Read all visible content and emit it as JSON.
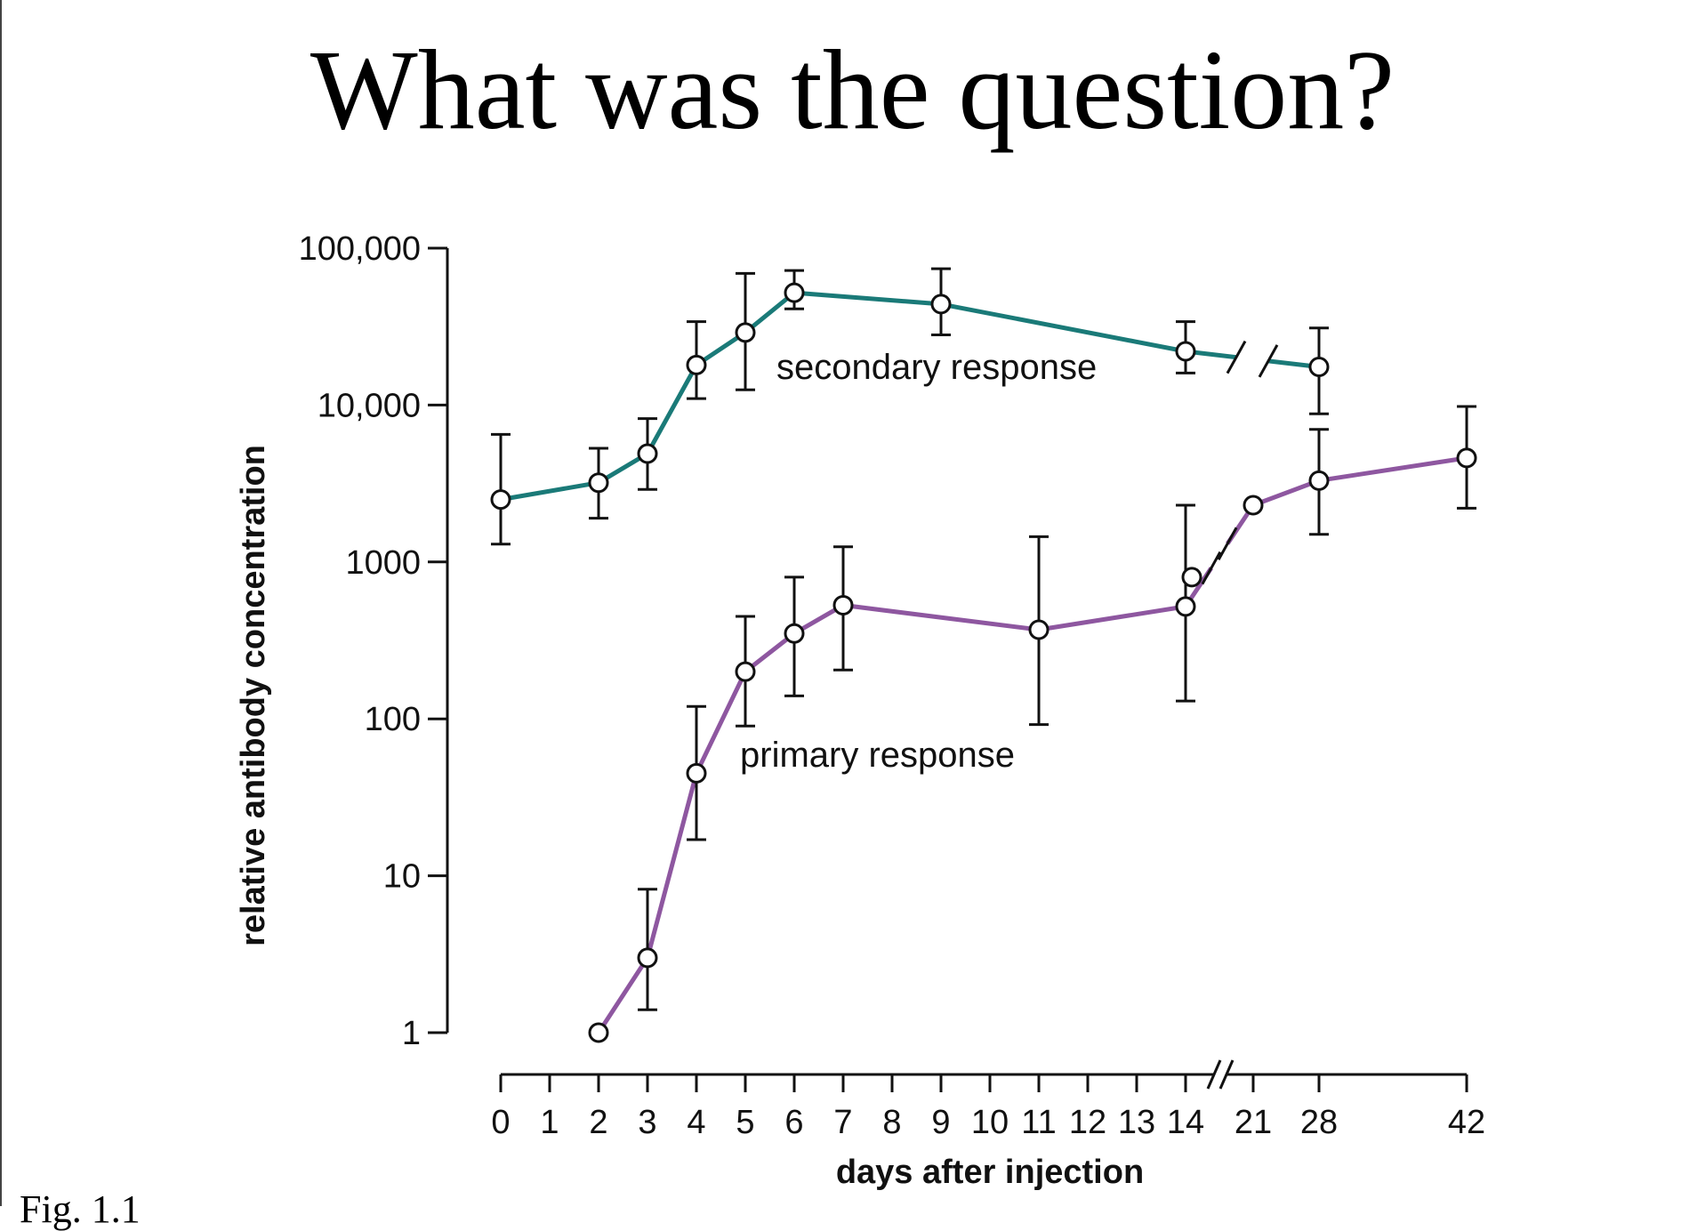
{
  "slide": {
    "title": "What was the question?",
    "footer_caption": "Fig. 1.1"
  },
  "chart_data": {
    "type": "line",
    "title": "",
    "xlabel": "days after injection",
    "ylabel": "relative antibody concentration",
    "y_scale": "log",
    "ylim": [
      1,
      100000
    ],
    "y_ticks": [
      {
        "value": 1,
        "label": "1"
      },
      {
        "value": 10,
        "label": "10"
      },
      {
        "value": 100,
        "label": "100"
      },
      {
        "value": 1000,
        "label": "1000"
      },
      {
        "value": 10000,
        "label": "10,000"
      },
      {
        "value": 100000,
        "label": "100,000"
      }
    ],
    "x_ticks": [
      0,
      1,
      2,
      3,
      4,
      5,
      6,
      7,
      8,
      9,
      10,
      11,
      12,
      13,
      14,
      21,
      28,
      42
    ],
    "x_axis_break": "between 14 and 21",
    "grid": false,
    "series": [
      {
        "name": "secondary response",
        "color": "#1a7a78",
        "points": [
          {
            "x": 0,
            "y": 2500,
            "low": 1300,
            "high": 6500
          },
          {
            "x": 2,
            "y": 3200,
            "low": 1900,
            "high": 5300
          },
          {
            "x": 3,
            "y": 4900,
            "low": 2900,
            "high": 8200
          },
          {
            "x": 4,
            "y": 18000,
            "low": 11000,
            "high": 34000
          },
          {
            "x": 5,
            "y": 29000,
            "low": 12500,
            "high": 69000
          },
          {
            "x": 6,
            "y": 52000,
            "low": 41000,
            "high": 72000
          },
          {
            "x": 9,
            "y": 44000,
            "low": 28000,
            "high": 74000
          },
          {
            "x": 14,
            "y": 22000,
            "low": 16000,
            "high": 34000
          },
          {
            "x": 28,
            "y": 17500,
            "low": 8800,
            "high": 31000
          }
        ]
      },
      {
        "name": "primary response",
        "color": "#8e57a0",
        "points": [
          {
            "x": 2,
            "y": 1
          },
          {
            "x": 3,
            "y": 3,
            "low": 1.4,
            "high": 8.2
          },
          {
            "x": 4,
            "y": 45,
            "low": 17,
            "high": 120
          },
          {
            "x": 5,
            "y": 200,
            "low": 90,
            "high": 450
          },
          {
            "x": 6,
            "y": 350,
            "low": 140,
            "high": 800
          },
          {
            "x": 7,
            "y": 530,
            "low": 205,
            "high": 1250
          },
          {
            "x": 11,
            "y": 370,
            "low": 92,
            "high": 1450
          },
          {
            "x": 14,
            "y": 520,
            "low": 130,
            "high": 2300
          },
          {
            "x": 21,
            "y": 2300
          },
          {
            "x": 28,
            "y": 3300,
            "low": 1500,
            "high": 7000
          },
          {
            "x": 42,
            "y": 4600,
            "low": 2200,
            "high": 9800
          }
        ],
        "extra_points": [
          {
            "x": 14,
            "y": 800
          }
        ]
      }
    ]
  }
}
